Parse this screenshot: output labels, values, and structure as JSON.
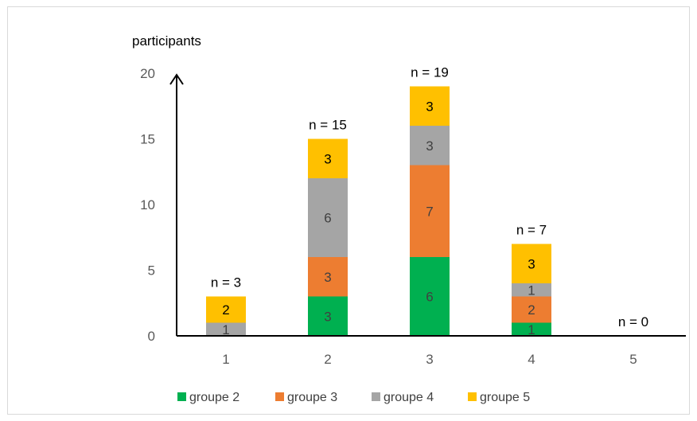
{
  "chart_data": {
    "type": "bar",
    "stacked": true,
    "categories": [
      "1",
      "2",
      "3",
      "4",
      "5"
    ],
    "series": [
      {
        "name": "groupe 2",
        "color": "#00b050",
        "values": [
          0,
          3,
          6,
          1,
          0
        ]
      },
      {
        "name": "groupe 3",
        "color": "#ed7d31",
        "values": [
          0,
          3,
          7,
          2,
          0
        ]
      },
      {
        "name": "groupe 4",
        "color": "#a5a5a5",
        "values": [
          1,
          6,
          3,
          1,
          0
        ]
      },
      {
        "name": "groupe 5",
        "color": "#ffc000",
        "values": [
          2,
          3,
          3,
          3,
          0
        ]
      }
    ],
    "totals": [
      "n = 3",
      "n = 15",
      "n = 19",
      "n = 7",
      "n = 0"
    ],
    "ylabel": "participants",
    "xlabel": "",
    "ylim": [
      0,
      20
    ],
    "yticks": [
      "0",
      "5",
      "10",
      "15",
      "20"
    ],
    "grid": false,
    "legend_position": "bottom"
  }
}
